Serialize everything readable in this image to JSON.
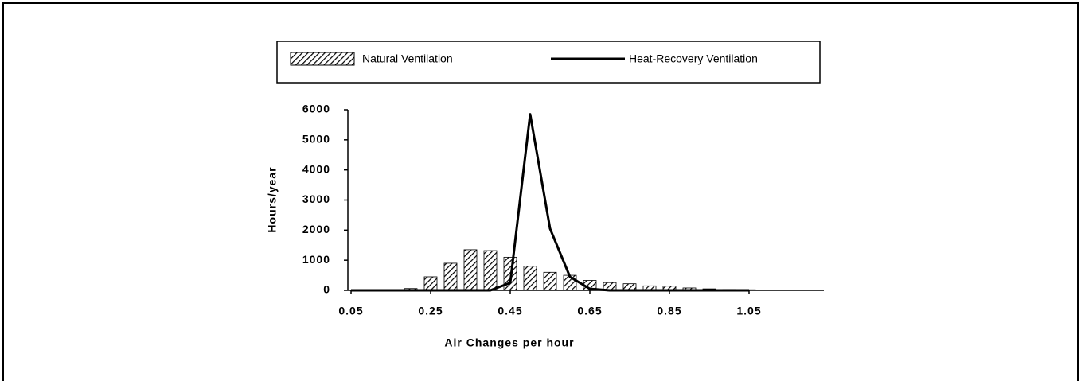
{
  "chart_data": {
    "type": "bar_line",
    "xlabel": "Air Changes per hour",
    "ylabel": "Hours/year",
    "x": [
      0.05,
      0.1,
      0.15,
      0.2,
      0.25,
      0.3,
      0.35,
      0.4,
      0.45,
      0.5,
      0.55,
      0.6,
      0.65,
      0.7,
      0.75,
      0.8,
      0.85,
      0.9,
      0.95,
      1.0,
      1.05
    ],
    "series": [
      {
        "name": "Natural Ventilation",
        "color": "#000000",
        "values": [
          0,
          0,
          10,
          60,
          450,
          900,
          1350,
          1320,
          1100,
          800,
          600,
          500,
          330,
          260,
          220,
          150,
          140,
          80,
          50,
          30,
          20
        ]
      },
      {
        "name": "Heat-Recovery Ventilation",
        "color": "#000000",
        "values": [
          0,
          0,
          0,
          0,
          0,
          0,
          0,
          0,
          250,
          5850,
          2050,
          450,
          50,
          0,
          0,
          0,
          0,
          0,
          0,
          0,
          0
        ]
      }
    ],
    "xlim": [
      0.042,
      1.238
    ],
    "xticks": [
      0.05,
      0.25,
      0.45,
      0.65,
      0.85,
      1.05
    ],
    "ylim": [
      0,
      6000
    ],
    "yticks": [
      0,
      1000,
      2000,
      3000,
      4000,
      5000,
      6000
    ],
    "legend": "top"
  }
}
